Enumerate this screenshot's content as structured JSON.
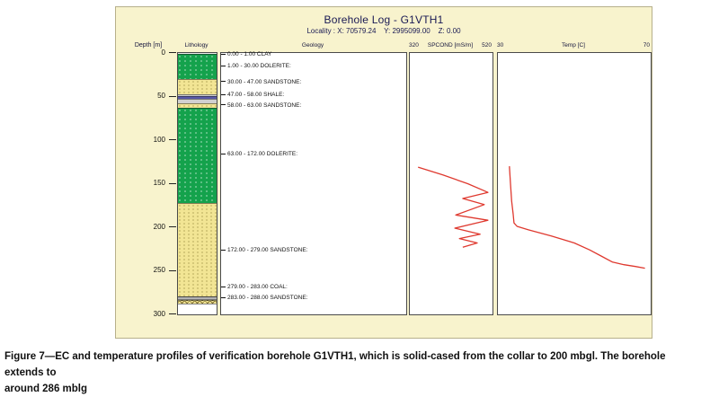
{
  "header": {
    "title": "Borehole Log - G1VTH1",
    "locality": "Locality : X: 70579.24    Y: 2995099.00    Z: 0.00"
  },
  "columns": {
    "depth_label": "Depth [m]",
    "lithology_label": "Lithology",
    "geology_label": "Geology",
    "spcond": {
      "min": "320",
      "label": "SPCOND [mS/m]",
      "max": "520"
    },
    "temp": {
      "min": "30",
      "label": "Temp [C]",
      "max": "70"
    }
  },
  "depth_axis": {
    "ticks": [
      0,
      50,
      100,
      150,
      200,
      250,
      300
    ],
    "max": 300
  },
  "lithology_intervals": [
    {
      "from": 0,
      "to": 1,
      "pattern": "clay",
      "color": "#ebebeb"
    },
    {
      "from": 1,
      "to": 30,
      "pattern": "dolerite",
      "color": "#14a24c"
    },
    {
      "from": 30,
      "to": 47,
      "pattern": "sandstone",
      "color": "#f2e594"
    },
    {
      "from": 47,
      "to": 49.5,
      "pattern": "shale",
      "color": "#d0d0d0"
    },
    {
      "from": 49.5,
      "to": 53,
      "pattern": "shale-band",
      "color": "#5858a8"
    },
    {
      "from": 53,
      "to": 58,
      "pattern": "shale",
      "color": "#d0d0d0"
    },
    {
      "from": 58,
      "to": 63,
      "pattern": "sandstone",
      "color": "#f2e594"
    },
    {
      "from": 63,
      "to": 172,
      "pattern": "dolerite",
      "color": "#14a24c"
    },
    {
      "from": 172,
      "to": 279,
      "pattern": "sandstone",
      "color": "#f2e594"
    },
    {
      "from": 279,
      "to": 283,
      "pattern": "coal",
      "color": "#b3b3b3"
    },
    {
      "from": 283,
      "to": 288,
      "pattern": "sandstone-tri",
      "color": "#f2e594"
    },
    {
      "from": 288,
      "to": 300,
      "pattern": "blank",
      "color": "#ffffff"
    }
  ],
  "geology_entries": [
    {
      "depth": 2,
      "label": "0.00 - 1.00 CLAY"
    },
    {
      "depth": 15,
      "label": "1.00 - 30.00 DOLERITE:"
    },
    {
      "depth": 33,
      "label": "30.00 - 47.00 SANDSTONE:"
    },
    {
      "depth": 48,
      "label": "47.00 - 58.00 SHALE:"
    },
    {
      "depth": 60,
      "label": "58.00 - 63.00 SANDSTONE:"
    },
    {
      "depth": 116,
      "label": "63.00 - 172.00 DOLERITE:"
    },
    {
      "depth": 226,
      "label": "172.00 - 279.00 SANDSTONE:"
    },
    {
      "depth": 269,
      "label": "279.00 - 283.00 COAL:"
    },
    {
      "depth": 281,
      "label": "283.00 - 288.00 SANDSTONE:"
    }
  ],
  "chart_data": [
    {
      "type": "line",
      "title": "SPCOND [mS/m]",
      "xlabel": "SPCOND [mS/m]",
      "ylabel": "Depth [m]",
      "xlim": [
        320,
        520
      ],
      "ylim": [
        0,
        300
      ],
      "grid": false,
      "legend": "none",
      "series": [
        {
          "name": "SPCOND",
          "color": "#df392f",
          "points": [
            [
              340,
              131
            ],
            [
              400,
              140
            ],
            [
              460,
              150
            ],
            [
              509,
              160
            ],
            [
              448,
              167
            ],
            [
              500,
              174
            ],
            [
              431,
              186
            ],
            [
              509,
              192
            ],
            [
              429,
              201
            ],
            [
              490,
              208
            ],
            [
              440,
              213
            ],
            [
              483,
              218
            ],
            [
              448,
              223
            ]
          ]
        }
      ]
    },
    {
      "type": "line",
      "title": "Temp [C]",
      "xlabel": "Temp [C]",
      "ylabel": "Depth [m]",
      "xlim": [
        30,
        70
      ],
      "ylim": [
        0,
        300
      ],
      "grid": false,
      "legend": "none",
      "series": [
        {
          "name": "Temp",
          "color": "#df392f",
          "points": [
            [
              33,
              130
            ],
            [
              33.3,
              150
            ],
            [
              33.6,
              170
            ],
            [
              34,
              185
            ],
            [
              34.2,
              195
            ],
            [
              35,
              199
            ],
            [
              38,
              203
            ],
            [
              44,
              210
            ],
            [
              50,
              218
            ],
            [
              54,
              226
            ],
            [
              57,
              233
            ],
            [
              60,
              240
            ],
            [
              63,
              243
            ],
            [
              66,
              245
            ],
            [
              68.5,
              247
            ]
          ]
        }
      ]
    }
  ],
  "caption": {
    "line1": "Figure 7—EC and temperature profiles of verification borehole G1VTH1, which is solid-cased from the collar to 200 mbgl. The borehole extends to",
    "line2": "around 286 mblg"
  }
}
